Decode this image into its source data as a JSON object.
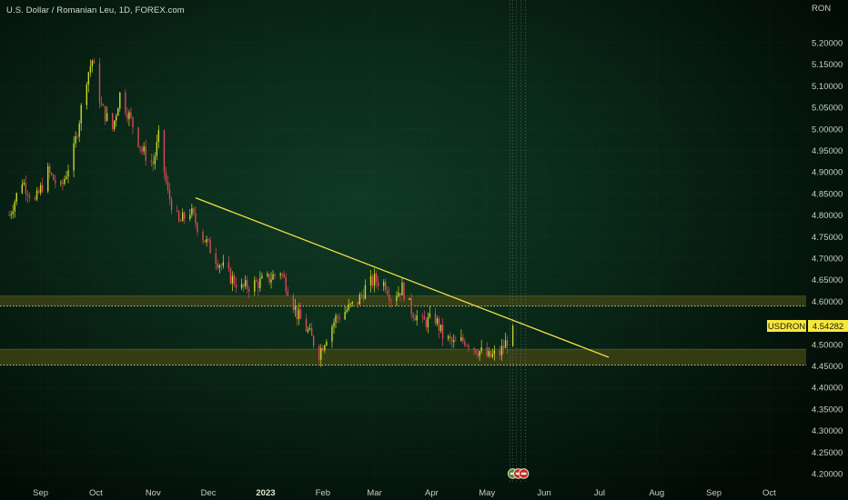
{
  "header": {
    "title": "U.S. Dollar / Romanian Leu, 1D, FOREX.com"
  },
  "colors": {
    "up": "#c9d82a",
    "down": "#d94a58",
    "trendline": "#f0dc46",
    "zone_fill": "#3c4214",
    "zone_line": "#c8c48c",
    "label_bg": "#f7e83a",
    "label_text": "#1a1a1a"
  },
  "chart_data": {
    "type": "candlestick",
    "currency": "RON",
    "y_ticks": [
      "5.20000",
      "5.15000",
      "5.10000",
      "5.05000",
      "5.00000",
      "4.95000",
      "4.90000",
      "4.85000",
      "4.80000",
      "4.75000",
      "4.70000",
      "4.65000",
      "4.60000",
      "4.55000",
      "4.50000",
      "4.45000",
      "4.40000",
      "4.35000",
      "4.30000",
      "4.25000",
      "4.20000"
    ],
    "ylim": [
      4.18,
      5.24
    ],
    "x_labels": [
      {
        "date": "2022-09-01",
        "label": "Sep"
      },
      {
        "date": "2022-10-01",
        "label": "Oct"
      },
      {
        "date": "2022-11-01",
        "label": "Nov"
      },
      {
        "date": "2022-12-01",
        "label": "Dec"
      },
      {
        "date": "2023-01-01",
        "label": "2023",
        "bold": true
      },
      {
        "date": "2023-02-01",
        "label": "Feb"
      },
      {
        "date": "2023-03-01",
        "label": "Mar"
      },
      {
        "date": "2023-04-01",
        "label": "Apr"
      },
      {
        "date": "2023-05-01",
        "label": "May"
      },
      {
        "date": "2023-06-01",
        "label": "Jun"
      },
      {
        "date": "2023-07-01",
        "label": "Jul"
      },
      {
        "date": "2023-08-01",
        "label": "Aug"
      },
      {
        "date": "2023-09-01",
        "label": "Sep"
      },
      {
        "date": "2023-10-01",
        "label": "Oct"
      }
    ],
    "x_range": [
      "2022-08-10",
      "2023-10-21"
    ],
    "price_path": [
      [
        "2022-08-15",
        4.8
      ],
      [
        "2022-08-22",
        4.88
      ],
      [
        "2022-08-29",
        4.83
      ],
      [
        "2022-09-05",
        4.9
      ],
      [
        "2022-09-12",
        4.86
      ],
      [
        "2022-09-19",
        4.95
      ],
      [
        "2022-09-26",
        5.12
      ],
      [
        "2022-09-29",
        5.16
      ],
      [
        "2022-10-04",
        5.05
      ],
      [
        "2022-10-10",
        5.0
      ],
      [
        "2022-10-14",
        5.08
      ],
      [
        "2022-10-20",
        5.02
      ],
      [
        "2022-10-26",
        4.95
      ],
      [
        "2022-11-01",
        4.92
      ],
      [
        "2022-11-04",
        4.98
      ],
      [
        "2022-11-09",
        4.85
      ],
      [
        "2022-11-15",
        4.78
      ],
      [
        "2022-11-21",
        4.81
      ],
      [
        "2022-11-28",
        4.75
      ],
      [
        "2022-12-05",
        4.7
      ],
      [
        "2022-12-12",
        4.66
      ],
      [
        "2022-12-19",
        4.63
      ],
      [
        "2022-12-26",
        4.64
      ],
      [
        "2023-01-02",
        4.65
      ],
      [
        "2023-01-09",
        4.67
      ],
      [
        "2023-01-13",
        4.63
      ],
      [
        "2023-01-18",
        4.57
      ],
      [
        "2023-01-24",
        4.53
      ],
      [
        "2023-01-30",
        4.48
      ],
      [
        "2023-02-03",
        4.52
      ],
      [
        "2023-02-08",
        4.56
      ],
      [
        "2023-02-14",
        4.58
      ],
      [
        "2023-02-20",
        4.6
      ],
      [
        "2023-02-24",
        4.63
      ],
      [
        "2023-03-01",
        4.65
      ],
      [
        "2023-03-07",
        4.64
      ],
      [
        "2023-03-10",
        4.61
      ],
      [
        "2023-03-16",
        4.63
      ],
      [
        "2023-03-21",
        4.58
      ],
      [
        "2023-03-27",
        4.55
      ],
      [
        "2023-04-03",
        4.56
      ],
      [
        "2023-04-07",
        4.52
      ],
      [
        "2023-04-13",
        4.5
      ],
      [
        "2023-04-19",
        4.51
      ],
      [
        "2023-04-25",
        4.49
      ],
      [
        "2023-05-02",
        4.47
      ],
      [
        "2023-05-08",
        4.48
      ],
      [
        "2023-05-12",
        4.51
      ],
      [
        "2023-05-15",
        4.54282
      ]
    ],
    "trendline": {
      "start": [
        "2022-11-24",
        4.84
      ],
      "end": [
        "2023-07-06",
        4.47
      ]
    },
    "zones": [
      {
        "from": 4.589,
        "to": 4.612,
        "dotted_at": 4.589
      },
      {
        "from": 4.452,
        "to": 4.489,
        "dotted_at": 4.452
      }
    ],
    "last_price": {
      "symbol": "USDRON",
      "value": "4.54282",
      "price": 4.54282
    },
    "future_markers_date": "2023-05-15"
  }
}
